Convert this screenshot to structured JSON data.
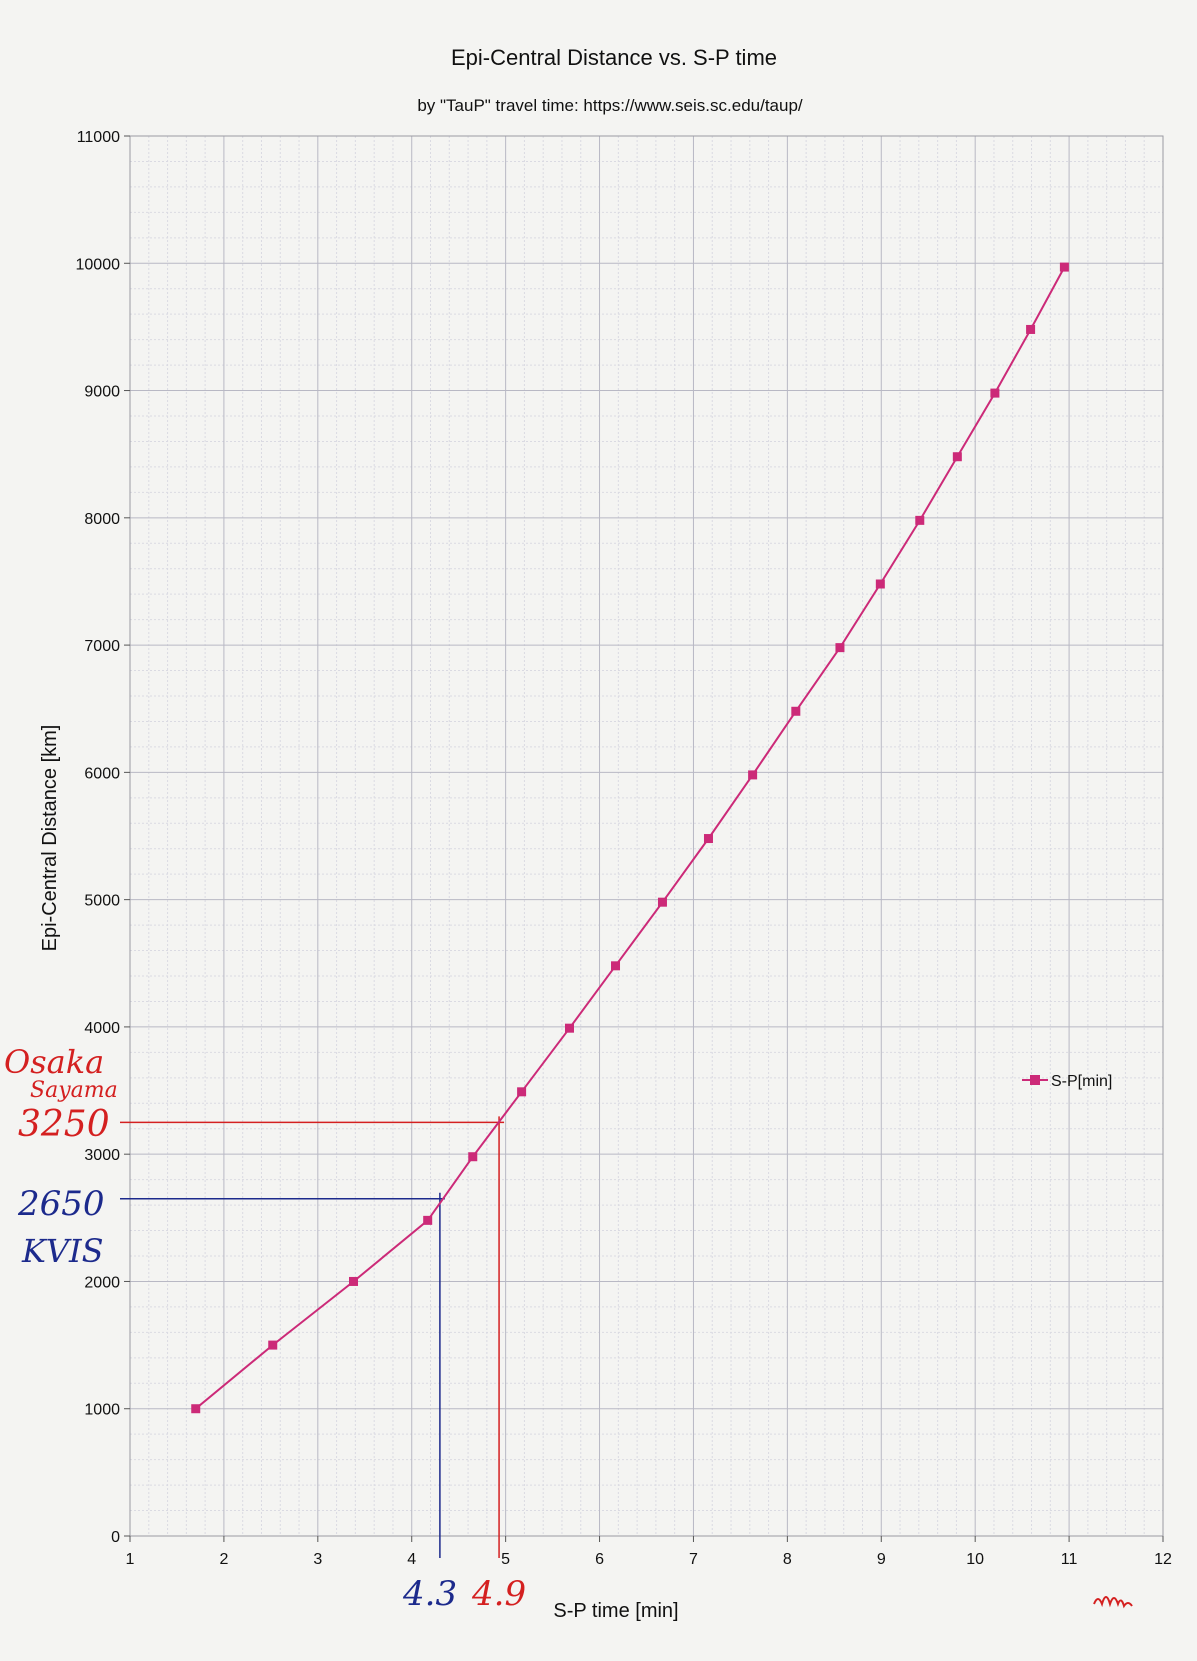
{
  "chart_data": {
    "type": "line",
    "title": "Epi-Central Distance vs. S-P time",
    "subtitle": "by \"TauP\" travel time: https://www.seis.sc.edu/taup/",
    "xlabel": "S-P time [min]",
    "ylabel": "Epi-Central Distance [km]",
    "xlim": [
      1,
      12
    ],
    "ylim": [
      0,
      11000
    ],
    "x_ticks": [
      "1",
      "2",
      "3",
      "4",
      "5",
      "6",
      "7",
      "8",
      "9",
      "10",
      "11",
      "12"
    ],
    "y_ticks": [
      "0",
      "1000",
      "2000",
      "3000",
      "4000",
      "5000",
      "6000",
      "7000",
      "8000",
      "9000",
      "10000",
      "11000"
    ],
    "grid": true,
    "legend_position": "right",
    "series": [
      {
        "name": "S-P[min]",
        "color": "#cc2a78",
        "marker": "square",
        "points": [
          [
            1.7,
            1000
          ],
          [
            2.52,
            1500
          ],
          [
            3.38,
            2000
          ],
          [
            4.17,
            2480
          ],
          [
            4.65,
            2980
          ],
          [
            5.17,
            3490
          ],
          [
            5.68,
            3990
          ],
          [
            6.17,
            4480
          ],
          [
            6.67,
            4980
          ],
          [
            7.16,
            5480
          ],
          [
            7.63,
            5980
          ],
          [
            8.09,
            6480
          ],
          [
            8.56,
            6980
          ],
          [
            8.99,
            7480
          ],
          [
            9.41,
            7980
          ],
          [
            9.81,
            8480
          ],
          [
            10.21,
            8980
          ],
          [
            10.59,
            9480
          ],
          [
            10.95,
            9970
          ]
        ]
      }
    ],
    "annotations": [
      {
        "color": "#d42020",
        "x_value": 4.93,
        "y_value": 3250,
        "x_text": "4.9",
        "y_text": "3250",
        "place_lines": [
          "Osaka",
          "Sayama"
        ]
      },
      {
        "color": "#1c2a8c",
        "x_value": 4.3,
        "y_value": 2650,
        "x_text": "4.3",
        "y_text": "2650",
        "place_lines": [
          "KVIS"
        ]
      }
    ],
    "signature_color": "#d42020"
  }
}
